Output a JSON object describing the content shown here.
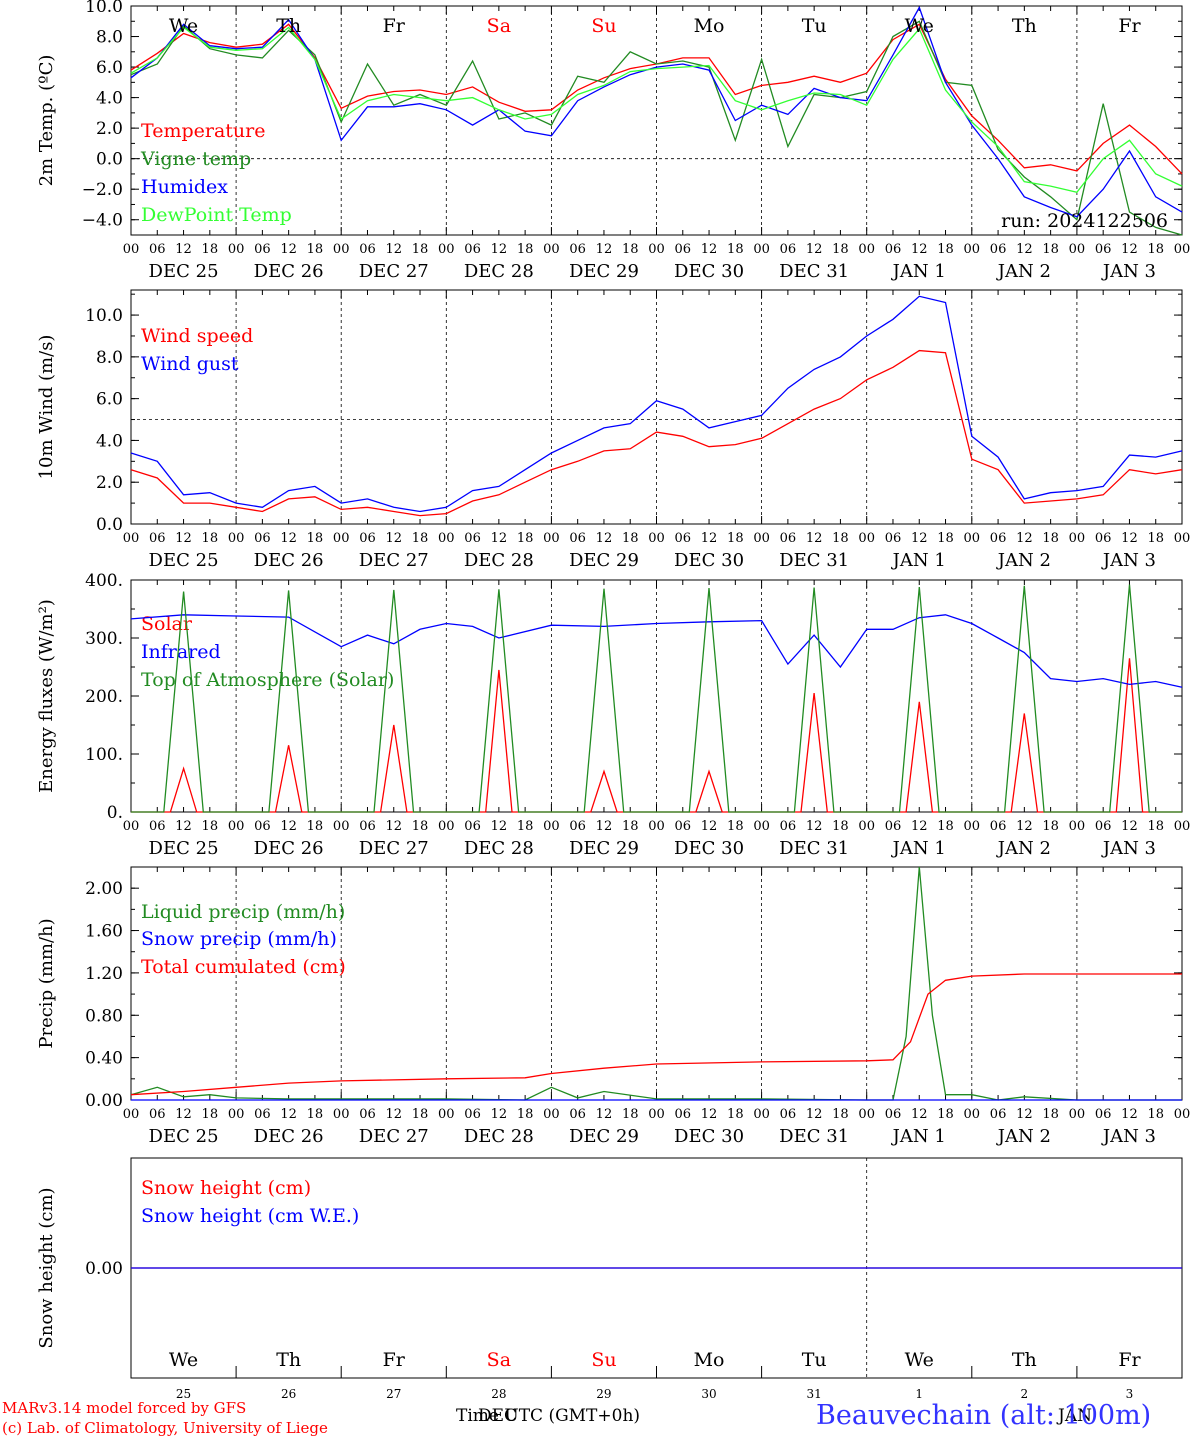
{
  "run_label": "run: 2024122506",
  "footer": {
    "model_line": "MARv3.14 model forced by GFS",
    "credit_line": "(c) Lab. of Climatology, University of Liege",
    "xlabel": "Time UTC (GMT+0h)",
    "month_dec": "DEC",
    "month_jan": "JAN",
    "station": "Beauvechain (alt: 100m)"
  },
  "weekdays": [
    {
      "label": "We",
      "color": "#000000"
    },
    {
      "label": "Th",
      "color": "#000000"
    },
    {
      "label": "Fr",
      "color": "#000000"
    },
    {
      "label": "Sa",
      "color": "#ff0000"
    },
    {
      "label": "Su",
      "color": "#ff0000"
    },
    {
      "label": "Mo",
      "color": "#000000"
    },
    {
      "label": "Tu",
      "color": "#000000"
    },
    {
      "label": "We",
      "color": "#000000"
    },
    {
      "label": "Th",
      "color": "#000000"
    },
    {
      "label": "Fr",
      "color": "#000000"
    }
  ],
  "day_labels": [
    "DEC 25",
    "DEC 26",
    "DEC 27",
    "DEC 28",
    "DEC 29",
    "DEC 30",
    "DEC 31",
    "JAN  1",
    "JAN  2",
    "JAN  3"
  ],
  "day_numbers": [
    "25",
    "26",
    "27",
    "28",
    "29",
    "30",
    "31",
    "1",
    "2",
    "3"
  ],
  "hour_ticks": [
    "00",
    "06",
    "12",
    "18"
  ],
  "hour_end": "00",
  "colors": {
    "red": "#ff0000",
    "green": "#228b22",
    "blue": "#0000ff",
    "lightgreen": "#33ff33",
    "black": "#000000"
  },
  "chart_data": [
    {
      "type": "line",
      "id": "temp",
      "ylabel": "2m Temp. (ºC)",
      "ylim": [
        -5,
        10
      ],
      "ytick_values": [
        -4,
        -2,
        0,
        2,
        4,
        6,
        8,
        10
      ],
      "ytick_labels": [
        "−4.0",
        "−2.0",
        "0.0",
        "2.0",
        "4.0",
        "6.0",
        "8.0",
        "10.0"
      ],
      "x_hours_range": [
        0,
        240
      ],
      "dashed_zero": 0,
      "series": [
        {
          "name": "Temperature",
          "color": "#ff0000",
          "x_hours": [
            0,
            6,
            12,
            18,
            24,
            30,
            36,
            42,
            48,
            54,
            60,
            66,
            72,
            78,
            84,
            90,
            96,
            102,
            108,
            114,
            120,
            126,
            132,
            138,
            144,
            150,
            156,
            162,
            168,
            174,
            180,
            186,
            192,
            198,
            204,
            210,
            216,
            222,
            228,
            234,
            240
          ],
          "values": [
            5.8,
            6.9,
            8.2,
            7.6,
            7.3,
            7.5,
            8.8,
            6.6,
            3.3,
            4.1,
            4.4,
            4.5,
            4.2,
            4.7,
            3.7,
            3.1,
            3.2,
            4.5,
            5.3,
            5.9,
            6.2,
            6.6,
            6.6,
            4.2,
            4.8,
            5.0,
            5.4,
            5.0,
            5.6,
            7.8,
            8.8,
            5.2,
            2.8,
            1.2,
            -0.6,
            -0.4,
            -0.8,
            1.0,
            2.2,
            0.8,
            -1.0
          ]
        },
        {
          "name": "Vigne temp",
          "color": "#228b22",
          "x_hours": [
            0,
            6,
            12,
            18,
            24,
            30,
            36,
            42,
            48,
            54,
            60,
            66,
            72,
            78,
            84,
            90,
            96,
            102,
            108,
            114,
            120,
            126,
            132,
            138,
            144,
            150,
            156,
            162,
            168,
            174,
            180,
            186,
            192,
            198,
            204,
            210,
            216,
            222,
            228,
            234,
            240
          ],
          "values": [
            5.5,
            6.2,
            8.7,
            7.2,
            6.8,
            6.6,
            8.4,
            6.8,
            2.4,
            6.2,
            3.5,
            4.2,
            3.5,
            6.4,
            2.6,
            3.0,
            2.2,
            5.4,
            5.0,
            7.0,
            6.2,
            6.4,
            6.0,
            1.2,
            6.5,
            0.8,
            4.2,
            4.0,
            4.4,
            8.0,
            9.0,
            5.0,
            4.8,
            0.6,
            -1.2,
            -2.5,
            -4.0,
            3.6,
            -3.5,
            -4.5,
            -5.0
          ]
        },
        {
          "name": "Humidex",
          "color": "#0000ff",
          "x_hours": [
            0,
            6,
            12,
            18,
            24,
            30,
            36,
            42,
            48,
            54,
            60,
            66,
            72,
            78,
            84,
            90,
            96,
            102,
            108,
            114,
            120,
            126,
            132,
            138,
            144,
            150,
            156,
            162,
            168,
            174,
            180,
            186,
            192,
            198,
            204,
            210,
            216,
            222,
            228,
            234,
            240
          ],
          "values": [
            5.3,
            6.6,
            8.8,
            7.4,
            7.2,
            7.3,
            9.1,
            6.5,
            1.2,
            3.4,
            3.4,
            3.6,
            3.2,
            2.2,
            3.2,
            1.8,
            1.5,
            3.8,
            4.7,
            5.5,
            6.0,
            6.2,
            5.8,
            2.5,
            3.5,
            2.9,
            4.6,
            4.0,
            3.8,
            6.8,
            9.9,
            5.0,
            2.2,
            0.0,
            -2.5,
            -3.2,
            -3.8,
            -2.0,
            0.5,
            -2.5,
            -3.5
          ]
        },
        {
          "name": "DewPoint Temp",
          "color": "#33ff33",
          "x_hours": [
            0,
            6,
            12,
            18,
            24,
            30,
            36,
            42,
            48,
            54,
            60,
            66,
            72,
            78,
            84,
            90,
            96,
            102,
            108,
            114,
            120,
            126,
            132,
            138,
            144,
            150,
            156,
            162,
            168,
            174,
            180,
            186,
            192,
            198,
            204,
            210,
            216,
            222,
            228,
            234,
            240
          ],
          "values": [
            5.6,
            6.6,
            8.6,
            7.3,
            7.1,
            7.2,
            8.6,
            6.5,
            2.6,
            3.8,
            4.2,
            4.0,
            3.8,
            4.0,
            3.2,
            2.6,
            2.9,
            4.2,
            4.8,
            5.7,
            5.9,
            6.0,
            6.1,
            3.8,
            3.2,
            3.8,
            4.3,
            4.2,
            3.5,
            6.5,
            8.5,
            4.5,
            2.4,
            0.8,
            -1.5,
            -1.8,
            -2.2,
            0.0,
            1.2,
            -1.0,
            -1.8
          ]
        }
      ]
    },
    {
      "type": "line",
      "id": "wind",
      "ylabel": "10m Wind (m/s)",
      "ylim": [
        0,
        11.2
      ],
      "ytick_values": [
        0,
        2,
        4,
        6,
        8,
        10
      ],
      "ytick_labels": [
        "0.0",
        "2.0",
        "4.0",
        "6.0",
        "8.0",
        "10.0"
      ],
      "x_hours_range": [
        0,
        240
      ],
      "dashed_ref": 5,
      "series": [
        {
          "name": "Wind speed",
          "color": "#ff0000",
          "x_hours": [
            0,
            6,
            12,
            18,
            24,
            30,
            36,
            42,
            48,
            54,
            60,
            66,
            72,
            78,
            84,
            90,
            96,
            102,
            108,
            114,
            120,
            126,
            132,
            138,
            144,
            150,
            156,
            162,
            168,
            174,
            180,
            186,
            192,
            198,
            204,
            210,
            216,
            222,
            228,
            234,
            240
          ],
          "values": [
            2.6,
            2.2,
            1.0,
            1.0,
            0.8,
            0.6,
            1.2,
            1.3,
            0.7,
            0.8,
            0.6,
            0.4,
            0.5,
            1.1,
            1.4,
            2.0,
            2.6,
            3.0,
            3.5,
            3.6,
            4.4,
            4.2,
            3.7,
            3.8,
            4.1,
            4.8,
            5.5,
            6.0,
            6.9,
            7.5,
            8.3,
            8.2,
            3.1,
            2.6,
            1.0,
            1.1,
            1.2,
            1.4,
            2.6,
            2.4,
            2.6
          ]
        },
        {
          "name": "Wind gust",
          "color": "#0000ff",
          "x_hours": [
            0,
            6,
            12,
            18,
            24,
            30,
            36,
            42,
            48,
            54,
            60,
            66,
            72,
            78,
            84,
            90,
            96,
            102,
            108,
            114,
            120,
            126,
            132,
            138,
            144,
            150,
            156,
            162,
            168,
            174,
            180,
            186,
            192,
            198,
            204,
            210,
            216,
            222,
            228,
            234,
            240
          ],
          "values": [
            3.4,
            3.0,
            1.4,
            1.5,
            1.0,
            0.8,
            1.6,
            1.8,
            1.0,
            1.2,
            0.8,
            0.6,
            0.8,
            1.6,
            1.8,
            2.6,
            3.4,
            4.0,
            4.6,
            4.8,
            5.9,
            5.5,
            4.6,
            4.9,
            5.2,
            6.5,
            7.4,
            8.0,
            9.0,
            9.8,
            10.9,
            10.6,
            4.2,
            3.2,
            1.2,
            1.5,
            1.6,
            1.8,
            3.3,
            3.2,
            3.5
          ]
        }
      ]
    },
    {
      "type": "line",
      "id": "energy",
      "ylabel": "Energy fluxes (W/m²)",
      "ylim": [
        0,
        400
      ],
      "ytick_values": [
        0,
        100,
        200,
        300,
        400
      ],
      "ytick_labels": [
        "0.",
        "100.",
        "200.",
        "300.",
        "400."
      ],
      "x_hours_range": [
        0,
        240
      ],
      "series": [
        {
          "name": "Solar",
          "color": "#ff0000",
          "x_hours": [
            0,
            9,
            12,
            15,
            24,
            33,
            36,
            39,
            48,
            57,
            60,
            63,
            72,
            81,
            84,
            87,
            96,
            105,
            108,
            111,
            120,
            129,
            132,
            135,
            144,
            153,
            156,
            159,
            168,
            177,
            180,
            183,
            192,
            201,
            204,
            207,
            216,
            225,
            228,
            231,
            240
          ],
          "values": [
            0,
            0,
            75,
            0,
            0,
            0,
            115,
            0,
            0,
            0,
            150,
            0,
            0,
            0,
            245,
            0,
            0,
            0,
            70,
            0,
            0,
            0,
            70,
            0,
            0,
            0,
            205,
            0,
            0,
            0,
            190,
            0,
            0,
            0,
            170,
            0,
            0,
            0,
            265,
            0,
            0
          ]
        },
        {
          "name": "Infrared",
          "color": "#0000ff",
          "x_hours": [
            0,
            12,
            24,
            36,
            48,
            54,
            60,
            66,
            72,
            78,
            84,
            96,
            108,
            120,
            132,
            144,
            150,
            156,
            162,
            168,
            174,
            180,
            186,
            192,
            198,
            204,
            210,
            216,
            222,
            228,
            234,
            240
          ],
          "values": [
            333,
            340,
            338,
            336,
            285,
            305,
            290,
            315,
            325,
            320,
            300,
            322,
            320,
            325,
            328,
            330,
            255,
            305,
            250,
            315,
            315,
            335,
            340,
            325,
            300,
            275,
            230,
            225,
            230,
            220,
            225,
            215
          ]
        },
        {
          "name": "Top of Atmosphere (Solar)",
          "color": "#228b22",
          "x_hours": [
            0,
            7.5,
            12,
            16.5,
            24,
            31.5,
            36,
            40.5,
            48,
            55.5,
            60,
            64.5,
            72,
            79.5,
            84,
            88.5,
            96,
            103.5,
            108,
            112.5,
            120,
            127.5,
            132,
            136.5,
            144,
            151.5,
            156,
            160.5,
            168,
            175.5,
            180,
            184.5,
            192,
            199.5,
            204,
            208.5,
            216,
            223.5,
            228,
            232.5,
            240
          ],
          "values": [
            0,
            0,
            380,
            0,
            0,
            0,
            382,
            0,
            0,
            0,
            383,
            0,
            0,
            0,
            384,
            0,
            0,
            0,
            385,
            0,
            0,
            0,
            386,
            0,
            0,
            0,
            387,
            0,
            0,
            0,
            388,
            0,
            0,
            0,
            390,
            0,
            0,
            0,
            392,
            0,
            0
          ]
        }
      ]
    },
    {
      "type": "line",
      "id": "precip",
      "ylabel": "Precip (mm/h)",
      "ylim": [
        0,
        2.2
      ],
      "ytick_values": [
        0,
        0.4,
        0.8,
        1.2,
        1.6,
        2.0
      ],
      "ytick_labels": [
        "0.00",
        "0.40",
        "0.80",
        "1.20",
        "1.60",
        "2.00"
      ],
      "x_hours_range": [
        0,
        240
      ],
      "series": [
        {
          "name": "Liquid precip (mm/h)",
          "color": "#228b22",
          "x_hours": [
            0,
            6,
            12,
            18,
            24,
            36,
            48,
            72,
            90,
            96,
            102,
            108,
            120,
            144,
            168,
            174,
            177,
            180,
            183,
            186,
            192,
            198,
            204,
            216,
            240
          ],
          "values": [
            0.05,
            0.12,
            0.03,
            0.05,
            0.02,
            0.01,
            0.01,
            0.01,
            0.0,
            0.12,
            0.02,
            0.08,
            0.01,
            0.01,
            0.0,
            0.0,
            0.6,
            2.2,
            0.8,
            0.05,
            0.05,
            0.0,
            0.03,
            0.0,
            0.0
          ]
        },
        {
          "name": "Snow precip (mm/h)",
          "color": "#0000ff",
          "x_hours": [
            0,
            240
          ],
          "values": [
            0,
            0
          ]
        },
        {
          "name": "Total cumulated (cm)",
          "color": "#ff0000",
          "x_hours": [
            0,
            12,
            24,
            36,
            48,
            72,
            90,
            96,
            108,
            120,
            144,
            168,
            174,
            178,
            182,
            186,
            192,
            204,
            216,
            240
          ],
          "values": [
            0.05,
            0.08,
            0.12,
            0.16,
            0.18,
            0.2,
            0.21,
            0.25,
            0.3,
            0.34,
            0.36,
            0.37,
            0.38,
            0.55,
            1.0,
            1.13,
            1.17,
            1.19,
            1.19,
            1.19
          ]
        }
      ]
    },
    {
      "type": "line",
      "id": "snow",
      "ylabel": "Snow height (cm)",
      "ylim": [
        -1,
        1
      ],
      "ytick_values": [
        0
      ],
      "ytick_labels": [
        "0.00"
      ],
      "x_hours_range": [
        0,
        240
      ],
      "series": [
        {
          "name": "Snow height (cm)",
          "color": "#ff0000",
          "x_hours": [
            0,
            240
          ],
          "values": [
            0,
            0
          ]
        },
        {
          "name": "Snow height (cm W.E.)",
          "color": "#0000ff",
          "x_hours": [
            0,
            240
          ],
          "values": [
            0,
            0
          ]
        }
      ]
    }
  ]
}
